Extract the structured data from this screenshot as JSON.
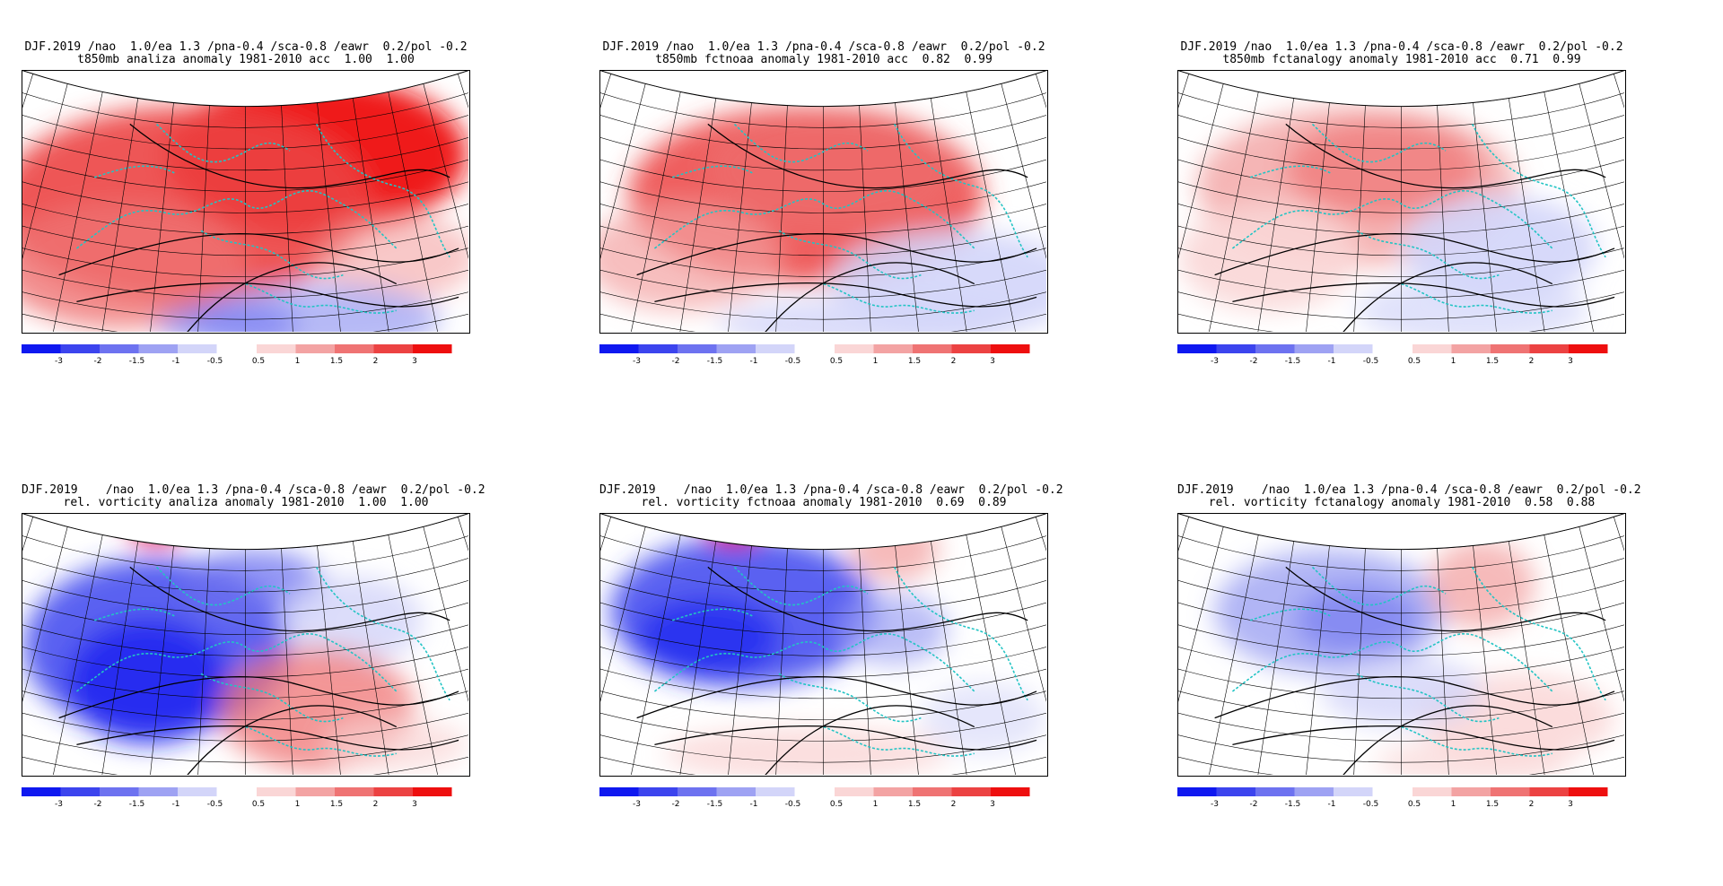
{
  "colorbar": {
    "negative": {
      "colors": [
        "#0f18f0",
        "#3c44ee",
        "#6d72f0",
        "#9ea2f3",
        "#d3d5f9"
      ],
      "labels": [
        "-3",
        "-2",
        "-1.5",
        "-1",
        "-0.5"
      ]
    },
    "positive": {
      "colors": [
        "#fad6d6",
        "#f3a3a3",
        "#ef7373",
        "#ec4242",
        "#ee0f0f"
      ],
      "labels": [
        "0.5",
        "1",
        "1.5",
        "2",
        "3"
      ]
    }
  },
  "panels": [
    {
      "id": "t850-analiza",
      "title1": "DJF.2019 /nao  1.0/ea 1.3 /pna-0.4 /sca-0.8 /eawr  0.2/pol -0.2",
      "title2": "t850mb analiza anomaly 1981-2010 acc  1.00  1.00",
      "chart_data": {
        "type": "heatmap",
        "variable": "t850mb",
        "source": "analiza",
        "climatology": "1981-2010",
        "acc": [
          1.0,
          1.0
        ],
        "anomaly_field_description": "strong positive anomaly (>3) over northern Europe/Scandinavia, weak negative anomaly in south-east",
        "color_levels": [
          -3,
          -2,
          -1.5,
          -1,
          -0.5,
          0.5,
          1,
          1.5,
          2,
          3
        ]
      }
    },
    {
      "id": "t850-fctnoaa",
      "title1": "DJF.2019 /nao  1.0/ea 1.3 /pna-0.4 /sca-0.8 /eawr  0.2/pol -0.2",
      "title2": "t850mb fctnoaa anomaly 1981-2010 acc  0.82  0.99",
      "chart_data": {
        "type": "heatmap",
        "variable": "t850mb",
        "source": "fctnoaa",
        "climatology": "1981-2010",
        "acc": [
          0.82,
          0.99
        ],
        "color_levels": [
          -3,
          -2,
          -1.5,
          -1,
          -0.5,
          0.5,
          1,
          1.5,
          2,
          3
        ]
      }
    },
    {
      "id": "t850-fctanalogy",
      "title1": "DJF.2019 /nao  1.0/ea 1.3 /pna-0.4 /sca-0.8 /eawr  0.2/pol -0.2",
      "title2": "t850mb fctanalogy anomaly 1981-2010 acc  0.71  0.99",
      "chart_data": {
        "type": "heatmap",
        "variable": "t850mb",
        "source": "fctanalogy",
        "climatology": "1981-2010",
        "acc": [
          0.71,
          0.99
        ],
        "color_levels": [
          -3,
          -2,
          -1.5,
          -1,
          -0.5,
          0.5,
          1,
          1.5,
          2,
          3
        ]
      }
    },
    {
      "id": "vort-analiza",
      "title1": "DJF.2019    /nao  1.0/ea 1.3 /pna-0.4 /sca-0.8 /eawr  0.2/pol -0.2",
      "title2": "rel. vorticity analiza anomaly 1981-2010  1.00  1.00",
      "chart_data": {
        "type": "heatmap",
        "variable": "rel. vorticity",
        "source": "analiza",
        "climatology": "1981-2010",
        "acc": [
          1.0,
          1.0
        ],
        "color_levels": [
          -3,
          -2,
          -1.5,
          -1,
          -0.5,
          0.5,
          1,
          1.5,
          2,
          3
        ]
      }
    },
    {
      "id": "vort-fctnoaa",
      "title1": "DJF.2019    /nao  1.0/ea 1.3 /pna-0.4 /sca-0.8 /eawr  0.2/pol -0.2",
      "title2": "rel. vorticity fctnoaa anomaly 1981-2010  0.69  0.89",
      "chart_data": {
        "type": "heatmap",
        "variable": "rel. vorticity",
        "source": "fctnoaa",
        "climatology": "1981-2010",
        "acc": [
          0.69,
          0.89
        ],
        "color_levels": [
          -3,
          -2,
          -1.5,
          -1,
          -0.5,
          0.5,
          1,
          1.5,
          2,
          3
        ]
      }
    },
    {
      "id": "vort-fctanalogy",
      "title1": "DJF.2019    /nao  1.0/ea 1.3 /pna-0.4 /sca-0.8 /eawr  0.2/pol -0.2",
      "title2": "rel. vorticity fctanalogy anomaly 1981-2010  0.58  0.88",
      "chart_data": {
        "type": "heatmap",
        "variable": "rel. vorticity",
        "source": "fctanalogy",
        "climatology": "1981-2010",
        "acc": [
          0.58,
          0.88
        ],
        "color_levels": [
          -3,
          -2,
          -1.5,
          -1,
          -0.5,
          0.5,
          1,
          1.5,
          2,
          3
        ]
      }
    }
  ]
}
